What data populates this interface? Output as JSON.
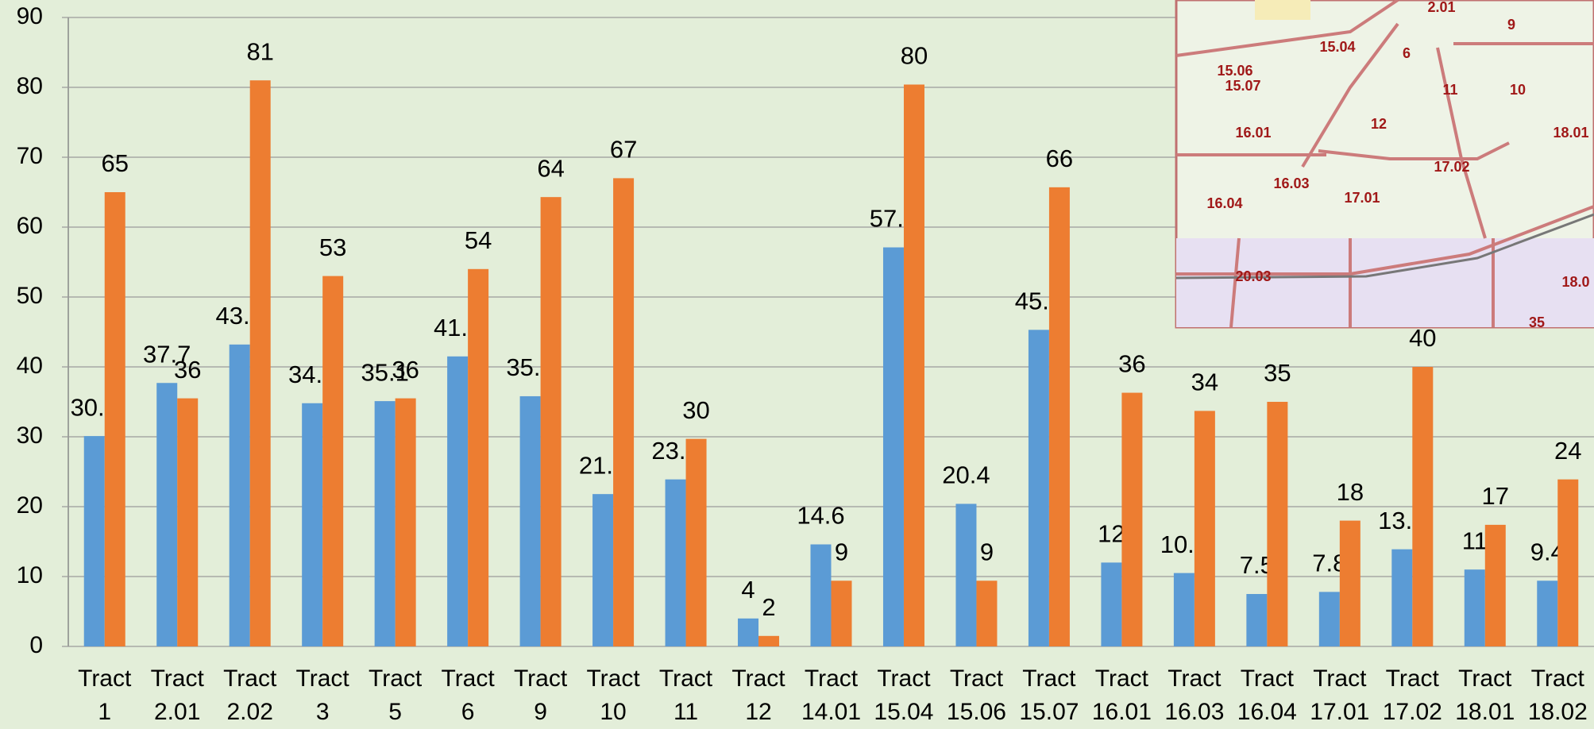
{
  "chart_data": {
    "type": "bar",
    "categories": [
      "Tract 1",
      "Tract 2.01",
      "Tract 2.02",
      "Tract 3",
      "Tract 5",
      "Tract 6",
      "Tract 9",
      "Tract 10",
      "Tract 11",
      "Tract 12",
      "Tract 14.01",
      "Tract 15.04",
      "Tract 15.06",
      "Tract 15.07",
      "Tract 16.01",
      "Tract 16.03",
      "Tract 16.04",
      "Tract 17.01",
      "Tract 17.02",
      "Tract 18.01",
      "Tract 18.02"
    ],
    "series": [
      {
        "color": "#5b9bd5",
        "values": [
          30.1,
          37.7,
          43.2,
          34.8,
          35.1,
          41.5,
          35.8,
          21.8,
          23.9,
          4,
          14.6,
          57.1,
          20.4,
          45.3,
          12,
          10.5,
          7.5,
          7.8,
          13.9,
          11,
          9.4
        ]
      },
      {
        "color": "#ed7d31",
        "values": [
          65,
          35.5,
          81,
          53,
          35.5,
          54,
          64.3,
          67,
          29.7,
          1.5,
          9.4,
          80.4,
          9.4,
          65.7,
          36.3,
          33.7,
          35,
          18,
          40,
          17.4,
          23.9
        ],
        "value_labels": [
          "65",
          "36",
          "81",
          "53",
          "36",
          "54",
          "64",
          "67",
          "30",
          "2",
          "9",
          "80",
          "9",
          "66",
          "36",
          "34",
          "35",
          "18",
          "40",
          "17",
          "24"
        ]
      }
    ],
    "ylim": [
      0,
      90
    ],
    "yticks": [
      0,
      10,
      20,
      30,
      40,
      50,
      60,
      70,
      80,
      90
    ],
    "grid": true
  },
  "map_inset": {
    "labels": [
      "2.01",
      "9",
      "15.06",
      "15.04",
      "6",
      "15.07",
      "11",
      "10",
      "12",
      "16.01",
      "18.01",
      "17.02",
      "16.03",
      "17.01",
      "16.04",
      "20.03",
      "18.0",
      "35"
    ]
  }
}
